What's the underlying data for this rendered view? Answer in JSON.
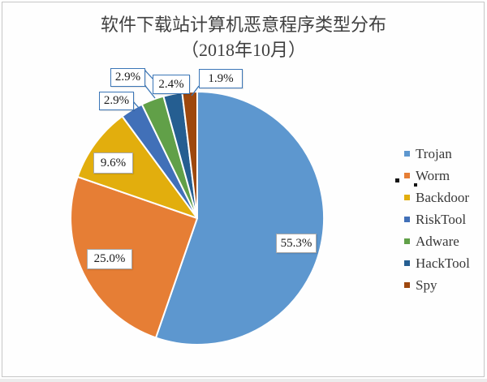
{
  "page": {
    "background_color": "#FFFFFF",
    "frame_border_color": "#C6C6C6"
  },
  "chart_data": {
    "type": "pie",
    "title": "软件下载站计算机恶意程序类型分布",
    "subtitle": "（2018年10月）",
    "legend_position": "right",
    "start_angle_deg": 0,
    "direction": "clockwise",
    "title_color": "#404040",
    "label_text_color": "#1A1A1A",
    "callout_border_color": "#3B76B7",
    "inner_label_border_color": "#A8A8A8",
    "slice_separator_color": "#FFFFFF",
    "slices": [
      {
        "label": "Trojan",
        "value": 55.3,
        "display": "55.3%",
        "color": "#5D97CF"
      },
      {
        "label": "Worm",
        "value": 25.0,
        "display": "25.0%",
        "color": "#E67E35"
      },
      {
        "label": "Backdoor",
        "value": 9.6,
        "display": "9.6%",
        "color": "#E2AE0D"
      },
      {
        "label": "RiskTool",
        "value": 2.9,
        "display": "2.9%",
        "color": "#4170B8"
      },
      {
        "label": "Adware",
        "value": 2.9,
        "display": "2.9%",
        "color": "#61A048"
      },
      {
        "label": "HackTool",
        "value": 2.4,
        "display": "2.4%",
        "color": "#255E91"
      },
      {
        "label": "Spy",
        "value": 1.9,
        "display": "1.9%",
        "color": "#9E480E"
      }
    ]
  }
}
